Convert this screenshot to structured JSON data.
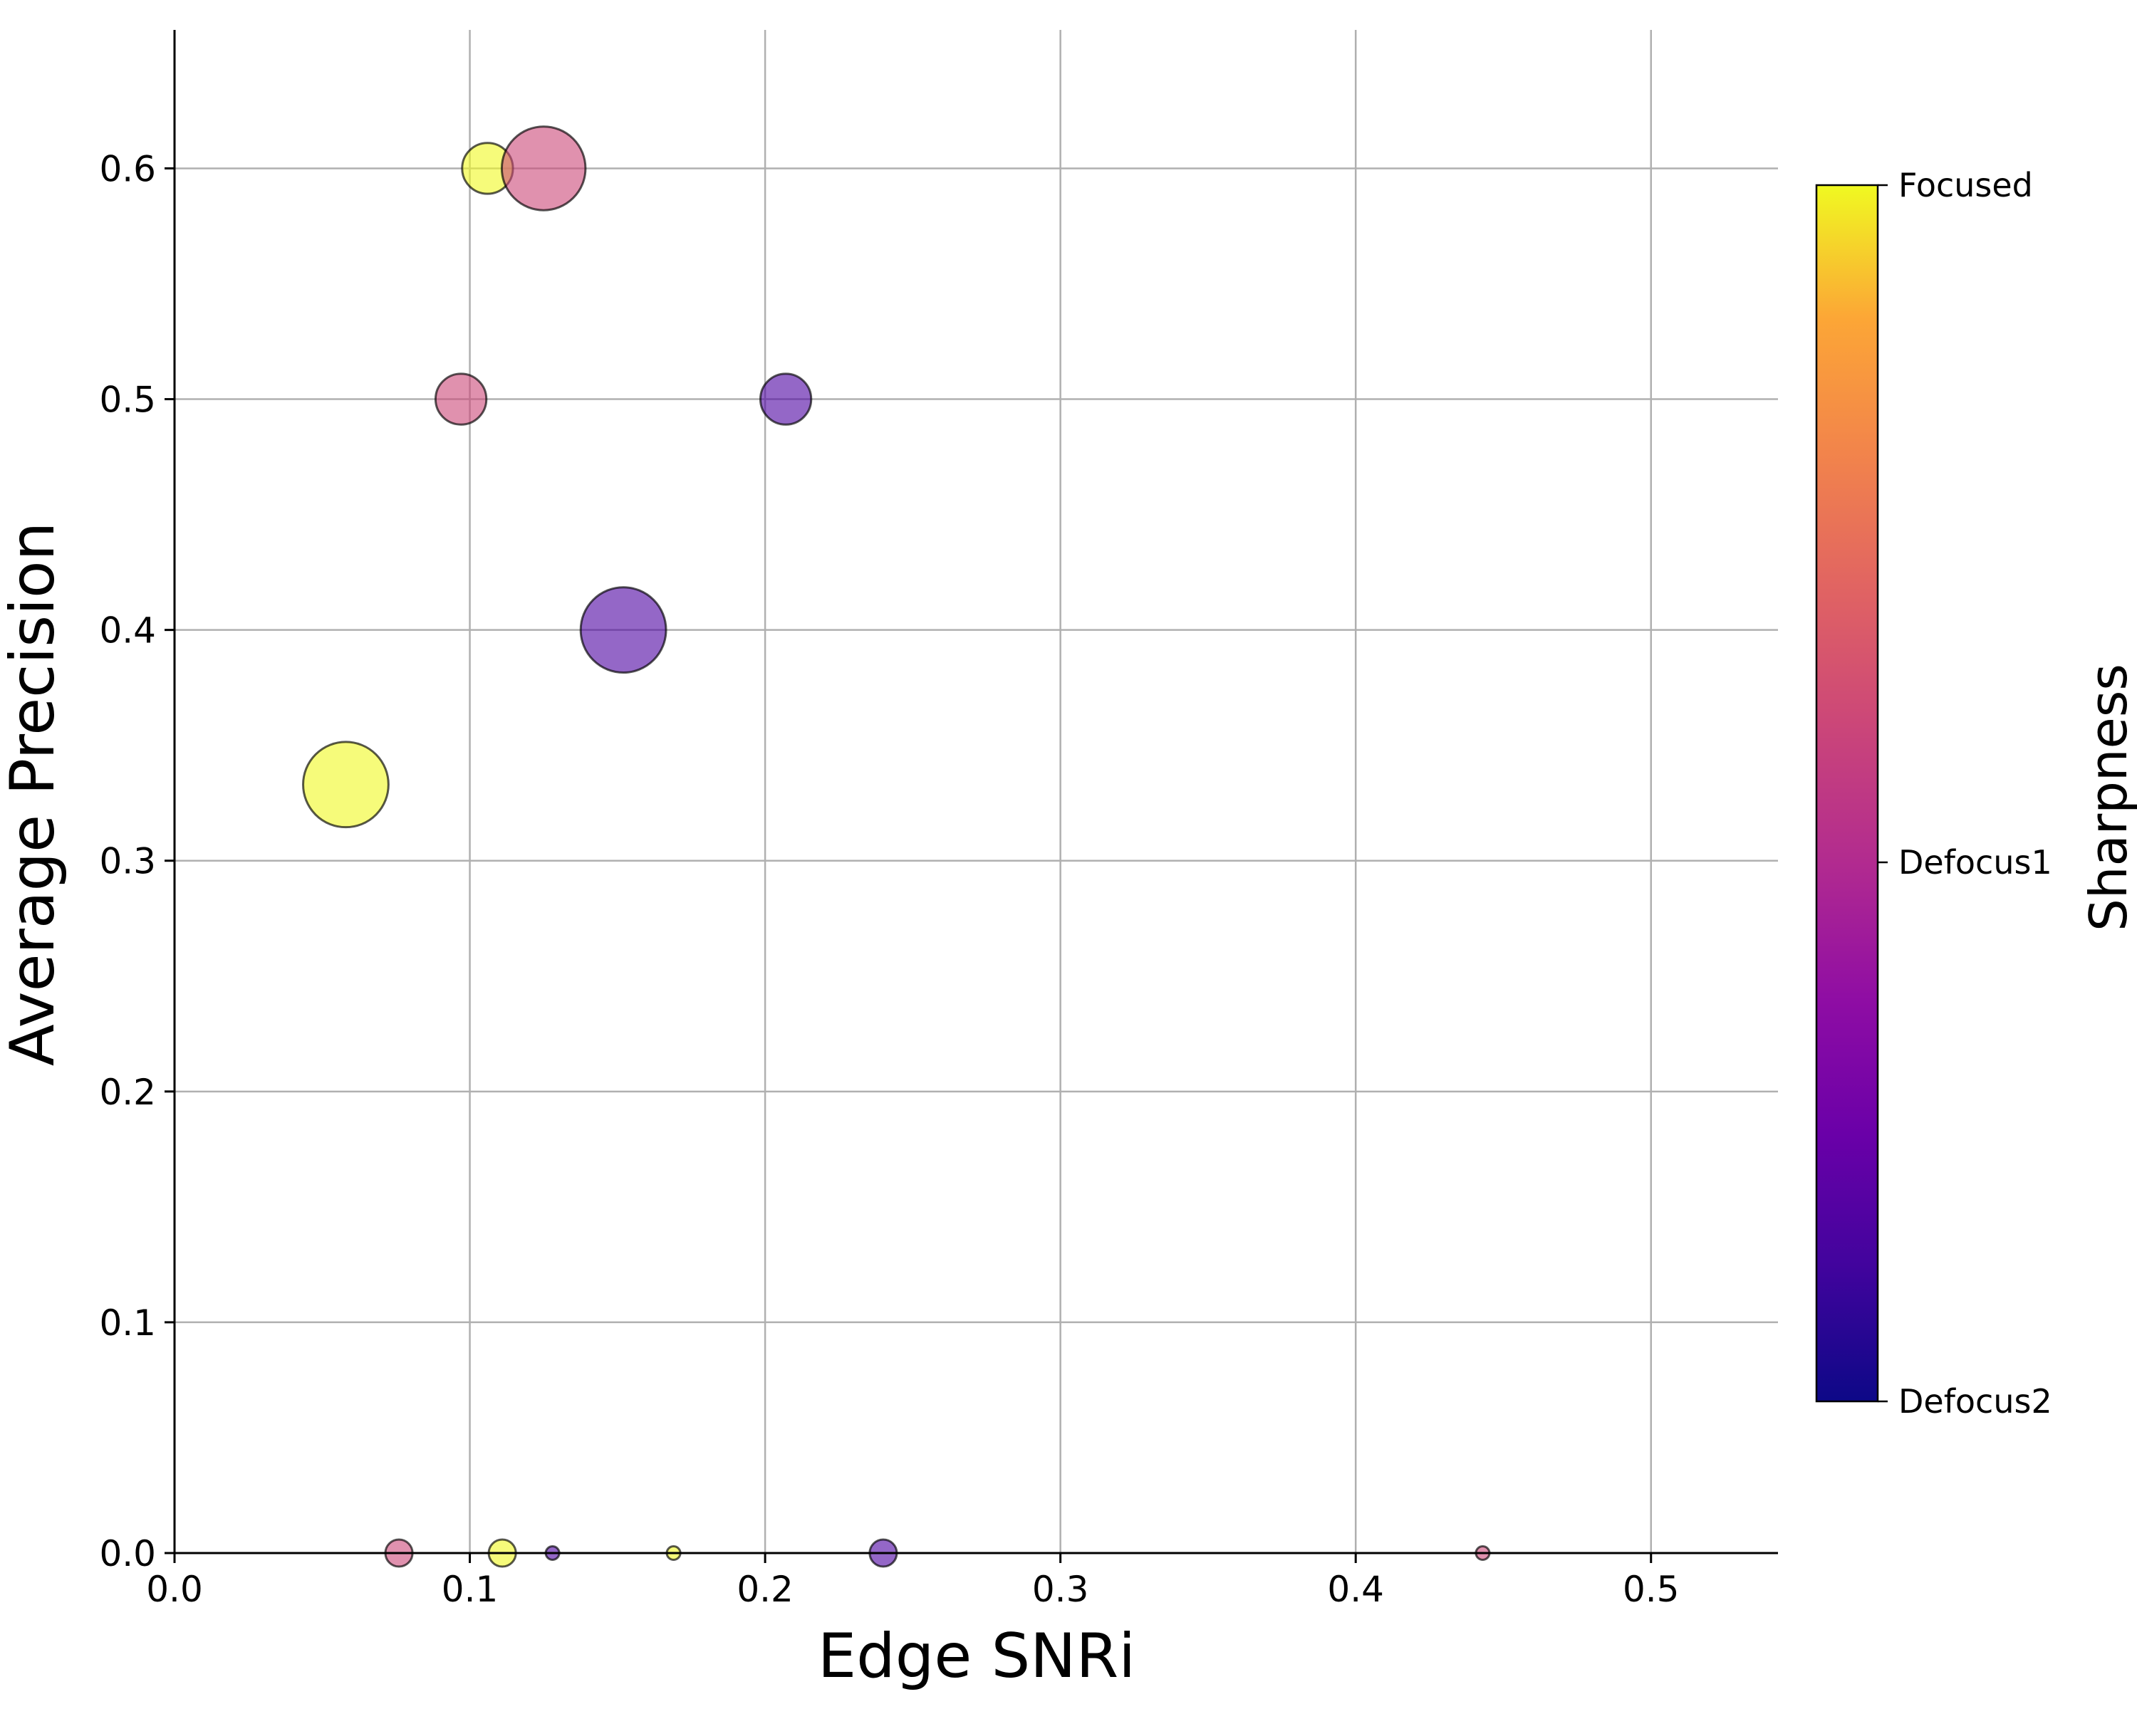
{
  "chart_data": {
    "type": "scatter",
    "title": "",
    "xlabel": "Edge SNRi",
    "ylabel": "Average Precision",
    "xlim": [
      0.0,
      0.543
    ],
    "ylim": [
      0.0,
      0.66
    ],
    "x_ticks": [
      "0.0",
      "0.1",
      "0.2",
      "0.3",
      "0.4",
      "0.5"
    ],
    "y_ticks": [
      "0.0",
      "0.1",
      "0.2",
      "0.3",
      "0.4",
      "0.5",
      "0.6"
    ],
    "grid": true,
    "colorbar": {
      "label": "Sharpness",
      "colormap": "plasma",
      "ticks": [
        "Focused",
        "Defocus1",
        "Defocus2"
      ]
    },
    "marker_alpha": 0.6,
    "points": [
      {
        "x": 0.058,
        "y": 0.333,
        "sharpness": "Focused",
        "size": 1580,
        "color": "#f0f921"
      },
      {
        "x": 0.106,
        "y": 0.6,
        "sharpness": "Focused",
        "size": 560,
        "color": "#f0f921"
      },
      {
        "x": 0.125,
        "y": 0.6,
        "sharpness": "Defocus1",
        "size": 1520,
        "color": "#cc4778"
      },
      {
        "x": 0.097,
        "y": 0.5,
        "sharpness": "Defocus1",
        "size": 560,
        "color": "#cc4778"
      },
      {
        "x": 0.207,
        "y": 0.5,
        "sharpness": "Defocus2",
        "size": 560,
        "color": "#4c02a1"
      },
      {
        "x": 0.152,
        "y": 0.4,
        "sharpness": "Defocus2",
        "size": 1580,
        "color": "#4c02a1"
      },
      {
        "x": 0.076,
        "y": 0.0,
        "sharpness": "Defocus1",
        "size": 160,
        "color": "#cc4778"
      },
      {
        "x": 0.111,
        "y": 0.0,
        "sharpness": "Focused",
        "size": 160,
        "color": "#f0f921"
      },
      {
        "x": 0.128,
        "y": 0.0,
        "sharpness": "Defocus2",
        "size": 40,
        "color": "#4c02a1"
      },
      {
        "x": 0.169,
        "y": 0.0,
        "sharpness": "Focused",
        "size": 40,
        "color": "#f0f921"
      },
      {
        "x": 0.24,
        "y": 0.0,
        "sharpness": "Defocus2",
        "size": 160,
        "color": "#4c02a1"
      },
      {
        "x": 0.443,
        "y": 0.0,
        "sharpness": "Defocus1",
        "size": 40,
        "color": "#cc4778"
      }
    ]
  }
}
